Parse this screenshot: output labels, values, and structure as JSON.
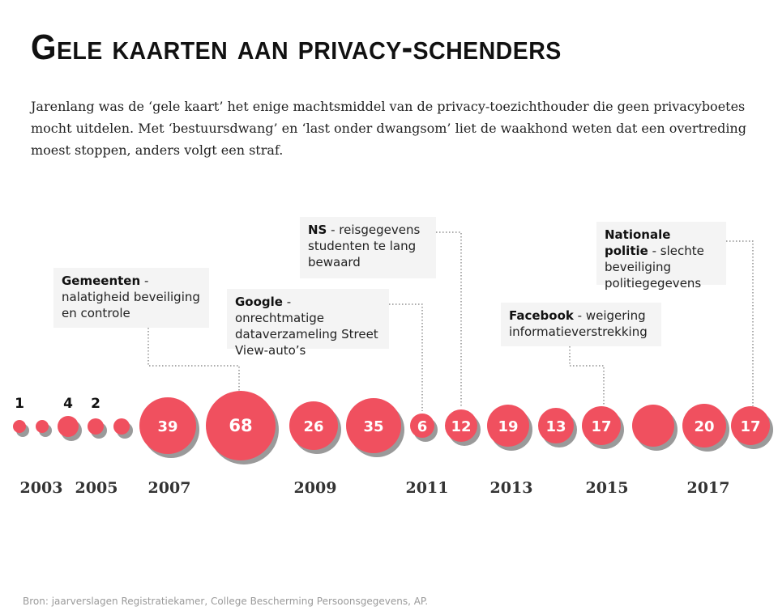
{
  "title": "Gele kaarten aan privacy-schenders",
  "intro": "Jarenlang was de ‘gele kaart’ het enige machtsmiddel van de privacy-toezichthouder die geen privacyboetes mocht uitdelen. Met ‘bestuursdwang’ en ‘last onder dwangsom’ liet de waakhond weten dat een overtreding moest stoppen, anders volgt een straf.",
  "source": "Bron: jaarverslagen Registratiekamer, College Bescherming Persoonsgegevens, AP.",
  "colors": {
    "bubble": "#f0505f",
    "shadow": "#9a9a9a",
    "note_bg": "#f4f4f4",
    "leader": "#777777"
  },
  "chart_data": {
    "type": "bubble-timeline",
    "x": [
      2003,
      2004,
      2005,
      2006,
      2007,
      2008,
      2009,
      2010,
      2011,
      2012,
      2013,
      2014,
      2015,
      2016,
      2017,
      2018
    ],
    "year_labels": [
      "2003",
      "2005",
      "2007",
      "2009",
      "2011",
      "2013",
      "2015",
      "2017"
    ],
    "data_labels": [
      "1",
      "",
      "4",
      "2",
      "",
      "39",
      "68",
      "26",
      "35",
      "6",
      "12",
      "19",
      "13",
      "17",
      "",
      "20",
      "17"
    ],
    "bubbles": [
      {
        "year": 2003.0,
        "value": 1,
        "label": "1"
      },
      {
        "year": 2003.5,
        "value": null,
        "label": ""
      },
      {
        "year": 2004.0,
        "value": 4,
        "label": "4"
      },
      {
        "year": 2005.0,
        "value": 2,
        "label": "2"
      },
      {
        "year": 2005.5,
        "value": null,
        "label": ""
      },
      {
        "year": 2007.0,
        "value": 39,
        "label": "39"
      },
      {
        "year": 2008.0,
        "value": 68,
        "label": "68"
      },
      {
        "year": 2009.0,
        "value": 26,
        "label": "26"
      },
      {
        "year": 2010.0,
        "value": 35,
        "label": "35"
      },
      {
        "year": 2011.0,
        "value": 6,
        "label": "6"
      },
      {
        "year": 2012.0,
        "value": 12,
        "label": "12"
      },
      {
        "year": 2013.0,
        "value": 19,
        "label": "19"
      },
      {
        "year": 2014.0,
        "value": 13,
        "label": "13"
      },
      {
        "year": 2015.0,
        "value": 17,
        "label": "17"
      },
      {
        "year": 2016.0,
        "value": null,
        "label": ""
      },
      {
        "year": 2017.0,
        "value": 20,
        "label": "20"
      },
      {
        "year": 2018.0,
        "value": 17,
        "label": "17"
      }
    ],
    "annotations": [
      {
        "bubble": 6,
        "bold": "Gemeenten",
        "text": " - nalatigheid beveiliging en controle"
      },
      {
        "bubble": 9,
        "bold": "Google",
        "text": " - onrechtmatige dataverzameling Street View-auto’s"
      },
      {
        "bubble": 10,
        "bold": "NS",
        "text": " - reisgegevens studenten te lang bewaard"
      },
      {
        "bubble": 13,
        "bold": "Facebook",
        "text": " - weigering informatieverstrekking"
      },
      {
        "bubble": 16,
        "bold": "Nationale politie",
        "text": " - slechte beveiliging politiegegevens"
      }
    ]
  }
}
